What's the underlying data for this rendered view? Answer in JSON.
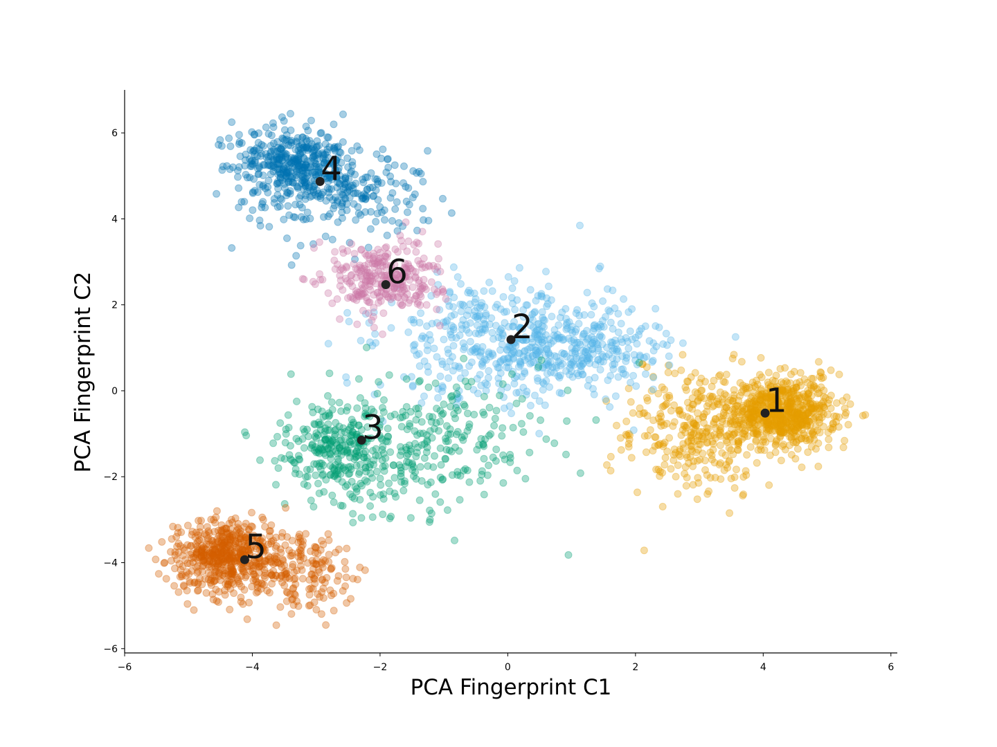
{
  "chart_data": {
    "type": "scatter",
    "title": "",
    "xlabel": "PCA Fingerprint C1",
    "ylabel": "PCA Fingerprint C2",
    "xlim": [
      -6,
      6.1
    ],
    "ylim": [
      -6.1,
      7.0
    ],
    "xticks": [
      -6,
      -4,
      -2,
      0,
      2,
      4,
      6
    ],
    "yticks": [
      -6,
      -4,
      -2,
      0,
      2,
      4,
      6
    ],
    "xtick_labels": [
      "−6",
      "−4",
      "−2",
      "0",
      "2",
      "4",
      "6"
    ],
    "ytick_labels": [
      "−6",
      "−4",
      "−2",
      "0",
      "2",
      "4",
      "6"
    ],
    "grid": false,
    "legend": "none",
    "clusters": [
      {
        "label": "1",
        "color": "#E69F00",
        "centroid": [
          4.03,
          -0.52
        ],
        "count": 1000
      },
      {
        "label": "2",
        "color": "#56B4E9",
        "centroid": [
          0.05,
          1.19
        ],
        "count": 650
      },
      {
        "label": "3",
        "color": "#009E73",
        "centroid": [
          -2.29,
          -1.15
        ],
        "count": 550
      },
      {
        "label": "4",
        "color": "#0072B2",
        "centroid": [
          -2.94,
          4.87
        ],
        "count": 600
      },
      {
        "label": "5",
        "color": "#D55E00",
        "centroid": [
          -4.12,
          -3.93
        ],
        "count": 700
      },
      {
        "label": "6",
        "color": "#CC79A7",
        "centroid": [
          -1.91,
          2.47
        ],
        "count": 300
      }
    ]
  }
}
